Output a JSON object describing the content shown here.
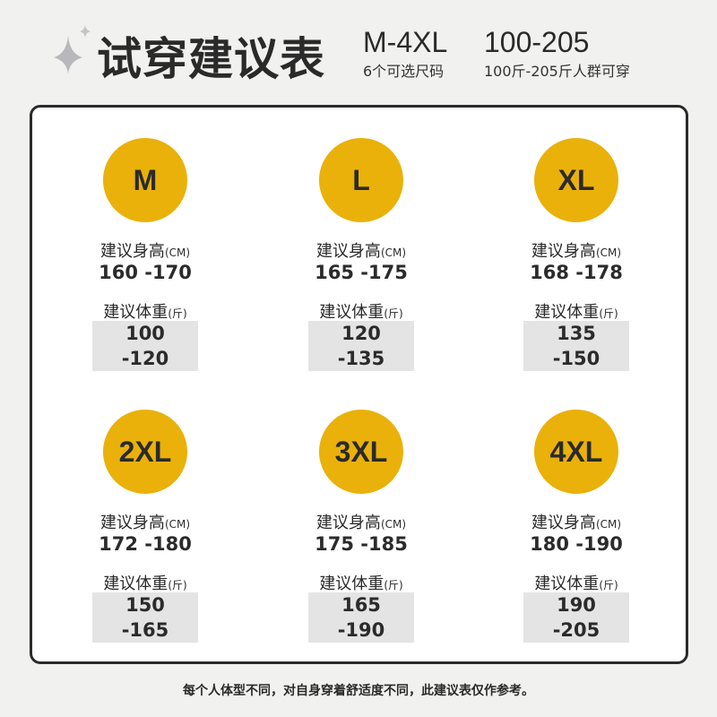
{
  "header": {
    "title": "试穿建议表",
    "size_range": "M-4XL",
    "size_note": "6个可选尺码",
    "weight_range": "100-205",
    "weight_note": "100斤-205斤人群可穿"
  },
  "accent_color": "#e9b10a",
  "labels": {
    "height": "建议身高",
    "height_unit": "(CM)",
    "weight": "建议体重",
    "weight_unit": "(斤)"
  },
  "sizes": [
    {
      "size": "M",
      "height": "160 -170",
      "weight": "100 -120"
    },
    {
      "size": "L",
      "height": "165 -175",
      "weight": "120 -135"
    },
    {
      "size": "XL",
      "height": "168 -178",
      "weight": "135 -150"
    },
    {
      "size": "2XL",
      "height": "172 -180",
      "weight": "150 -165"
    },
    {
      "size": "3XL",
      "height": "175 -185",
      "weight": "165 -190"
    },
    {
      "size": "4XL",
      "height": "180 -190",
      "weight": "190 -205"
    }
  ],
  "footer": "每个人体型不同，对自身穿着舒适度不同，此建议表仅作参考。"
}
